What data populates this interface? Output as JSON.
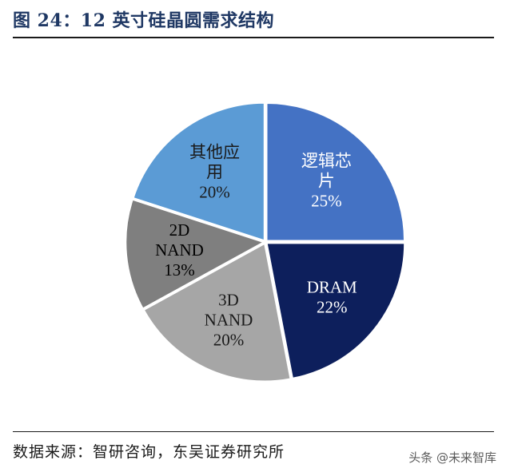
{
  "figure": {
    "title": "图 24：12 英寸硅晶圆需求结构",
    "source": "数据来源：智研咨询，东吴证券研究所",
    "watermark": "头条 @未来智库"
  },
  "chart_data": {
    "type": "pie",
    "start_angle_deg": 0,
    "direction": "clockwise",
    "slices": [
      {
        "label_lines": [
          "逻辑芯",
          "片"
        ],
        "percent_text": "25%",
        "value": 25,
        "color": "#4472c4",
        "text_color": "#ffffff"
      },
      {
        "label_lines": [
          "DRAM"
        ],
        "percent_text": "22%",
        "value": 22,
        "color": "#0d1f5c",
        "text_color": "#ffffff"
      },
      {
        "label_lines": [
          "3D",
          "NAND"
        ],
        "percent_text": "20%",
        "value": 20,
        "color": "#a6a6a6",
        "text_color": "#1a1a1a"
      },
      {
        "label_lines": [
          "2D",
          "NAND"
        ],
        "percent_text": "13%",
        "value": 13,
        "color": "#7f7f7f",
        "text_color": "#000000"
      },
      {
        "label_lines": [
          "其他应",
          "用"
        ],
        "percent_text": "20%",
        "value": 20,
        "color": "#5b9bd5",
        "text_color": "#1a1a1a"
      }
    ]
  }
}
